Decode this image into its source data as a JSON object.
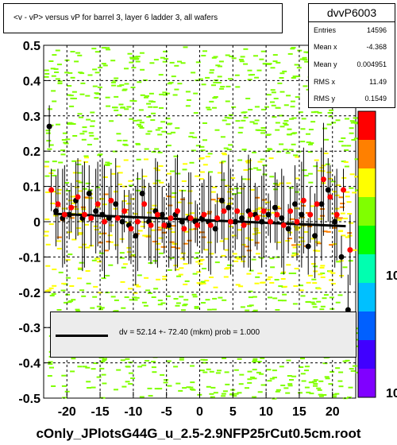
{
  "title": "<v - vP>       versus   vP for barrel 3, layer 6 ladder 3, all wafers",
  "stats": {
    "name": "dvvP6003",
    "rows": [
      {
        "k": "Entries",
        "v": "14596"
      },
      {
        "k": "Mean x",
        "v": "-4.368"
      },
      {
        "k": "Mean y",
        "v": "0.004951"
      },
      {
        "k": "RMS x",
        "v": "11.49"
      },
      {
        "k": "RMS y",
        "v": "0.1549"
      }
    ]
  },
  "fit_text": "dv =   52.14 +- 72.40 (mkm) prob = 1.000",
  "footer": "cOnly_JPlotsG44G_u_2.5-2.9NFP25rCut0.5cm.root",
  "colorbar_labels": [
    "10",
    "10"
  ],
  "colors": {
    "black_points": "#000000",
    "red_points": "#ff0000",
    "fit_line": "#000000",
    "heat_low": "#7fff00",
    "heat_mid": "#ffff00",
    "heat_high": "#ff8000"
  },
  "chart_data": {
    "type": "scatter",
    "xlim": [
      -23.5,
      23.5
    ],
    "ylim": [
      -0.5,
      0.5
    ],
    "x_ticks": [
      -20,
      -15,
      -10,
      -5,
      0,
      5,
      10,
      15,
      20
    ],
    "x_tick_labels": [
      "-20",
      "-15",
      "-10",
      "-5",
      "0",
      "5",
      "10",
      "15",
      "20"
    ],
    "y_ticks": [
      0.5,
      0.4,
      0.3,
      0.2,
      0.1,
      0,
      -0.1,
      -0.2,
      -0.3,
      -0.4,
      -0.5
    ],
    "y_tick_labels": [
      "0.5",
      "0.4",
      "0.3",
      "0.2",
      "0.1",
      "0",
      "-0.1",
      "-0.2",
      "-0.3",
      "-0.4",
      "-0.5"
    ],
    "grid": true,
    "series": [
      {
        "marker": "black-circle",
        "points": [
          [
            -22.5,
            0.27
          ],
          [
            -21.5,
            0.03
          ],
          [
            -20.5,
            0.01
          ],
          [
            -19.5,
            0.02
          ],
          [
            -18.5,
            0.06
          ],
          [
            -17.5,
            0.01
          ],
          [
            -16.5,
            0.08
          ],
          [
            -15.5,
            0.03
          ],
          [
            -14.5,
            0.02
          ],
          [
            -13.5,
            0.01
          ],
          [
            -12.5,
            0.05
          ],
          [
            -11.5,
            0.0
          ],
          [
            -10.5,
            -0.01
          ],
          [
            -9.5,
            -0.04
          ],
          [
            -8.5,
            0.08
          ],
          [
            -7.5,
            0.0
          ],
          [
            -6.5,
            0.03
          ],
          [
            -5.5,
            0.02
          ],
          [
            -4.5,
            -0.01
          ],
          [
            -3.5,
            0.02
          ],
          [
            -2.5,
            0.0
          ],
          [
            -1.5,
            0.01
          ],
          [
            -0.5,
            0.0
          ],
          [
            0.5,
            0.01
          ],
          [
            1.5,
            0.0
          ],
          [
            2.5,
            -0.02
          ],
          [
            3.5,
            0.06
          ],
          [
            4.5,
            0.04
          ],
          [
            5.5,
            0.0
          ],
          [
            6.5,
            0.01
          ],
          [
            7.5,
            0.03
          ],
          [
            8.5,
            0.02
          ],
          [
            9.5,
            0.0
          ],
          [
            10.5,
            0.02
          ],
          [
            11.5,
            0.04
          ],
          [
            12.5,
            0.01
          ],
          [
            13.5,
            -0.02
          ],
          [
            14.5,
            0.05
          ],
          [
            15.5,
            0.02
          ],
          [
            16.5,
            -0.07
          ],
          [
            17.5,
            -0.04
          ],
          [
            18.5,
            0.05
          ],
          [
            19.5,
            0.09
          ],
          [
            20.5,
            0.0
          ],
          [
            21.5,
            -0.1
          ],
          [
            22.5,
            -0.25
          ]
        ]
      },
      {
        "marker": "red-circle",
        "points": [
          [
            -22.5,
            0.09
          ],
          [
            -21.5,
            0.05
          ],
          [
            -20.5,
            0.02
          ],
          [
            -19.5,
            0.04
          ],
          [
            -18.5,
            0.07
          ],
          [
            -17.5,
            0.02
          ],
          [
            -16.5,
            0.01
          ],
          [
            -15.5,
            0.05
          ],
          [
            -14.5,
            0.0
          ],
          [
            -13.5,
            0.06
          ],
          [
            -12.5,
            0.01
          ],
          [
            -11.5,
            0.03
          ],
          [
            -10.5,
            -0.02
          ],
          [
            -9.5,
            0.0
          ],
          [
            -8.5,
            0.05
          ],
          [
            -7.5,
            -0.01
          ],
          [
            -6.5,
            0.02
          ],
          [
            -5.5,
            -0.01
          ],
          [
            -4.5,
            0.01
          ],
          [
            -3.5,
            0.03
          ],
          [
            -2.5,
            -0.02
          ],
          [
            -1.5,
            0.01
          ],
          [
            -0.5,
            -0.01
          ],
          [
            0.5,
            0.02
          ],
          [
            1.5,
            -0.01
          ],
          [
            2.5,
            0.01
          ],
          [
            3.5,
            0.03
          ],
          [
            4.5,
            0.0
          ],
          [
            5.5,
            0.03
          ],
          [
            6.5,
            -0.01
          ],
          [
            7.5,
            0.02
          ],
          [
            8.5,
            0.01
          ],
          [
            9.5,
            0.03
          ],
          [
            10.5,
            0.0
          ],
          [
            11.5,
            0.02
          ],
          [
            12.5,
            -0.01
          ],
          [
            13.5,
            0.03
          ],
          [
            14.5,
            0.0
          ],
          [
            15.5,
            0.06
          ],
          [
            16.5,
            0.02
          ],
          [
            17.5,
            0.05
          ],
          [
            18.5,
            0.12
          ],
          [
            19.5,
            0.07
          ],
          [
            20.5,
            0.02
          ],
          [
            21.5,
            0.09
          ],
          [
            22.5,
            -0.08
          ]
        ]
      }
    ],
    "fit": {
      "slope": -0.0008,
      "intercept": 0.005
    }
  }
}
